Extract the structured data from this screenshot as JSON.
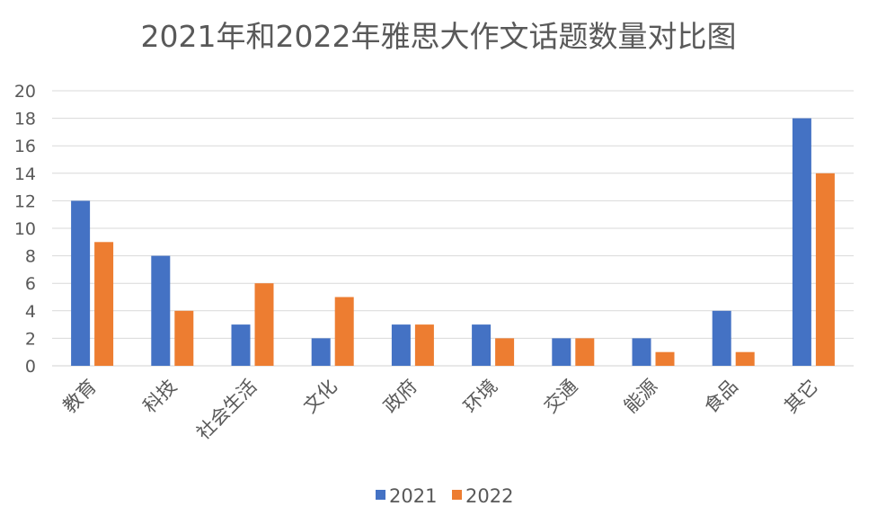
{
  "chart_data": {
    "type": "bar",
    "title": "2021年和2022年雅思大作文话题数量对比图",
    "categories": [
      "教育",
      "科技",
      "社会生活",
      "文化",
      "政府",
      "环境",
      "交通",
      "能源",
      "食品",
      "其它"
    ],
    "series": [
      {
        "name": "2021",
        "color": "#4472C4",
        "values": [
          12,
          8,
          3,
          2,
          3,
          3,
          2,
          2,
          4,
          18
        ]
      },
      {
        "name": "2022",
        "color": "#ED7D31",
        "values": [
          9,
          4,
          6,
          5,
          3,
          2,
          2,
          1,
          1,
          14
        ]
      }
    ],
    "ylim": [
      0,
      20
    ],
    "yticks": [
      "0",
      "2",
      "4",
      "6",
      "8",
      "10",
      "12",
      "14",
      "16",
      "18",
      "20"
    ],
    "grid": true,
    "legend": "bottom"
  }
}
